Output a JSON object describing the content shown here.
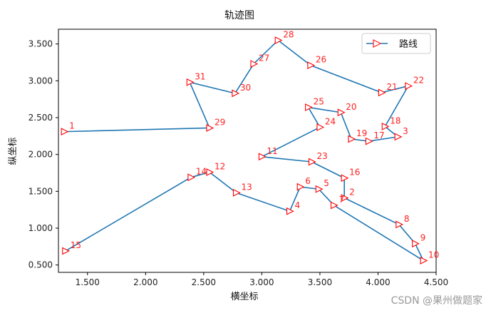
{
  "chart_data": {
    "type": "line",
    "title": "轨迹图",
    "xlabel": "横坐标",
    "ylabel": "纵坐标",
    "xlim": [
      1.25,
      4.5
    ],
    "ylim": [
      0.4,
      3.7
    ],
    "xticks": [
      1.5,
      2.0,
      2.5,
      3.0,
      3.5,
      4.0,
      4.5
    ],
    "yticks": [
      0.5,
      1.0,
      1.5,
      2.0,
      2.5,
      3.0,
      3.5
    ],
    "xtick_labels": [
      "1.500",
      "2.000",
      "2.500",
      "3.000",
      "3.500",
      "4.000",
      "4.500"
    ],
    "ytick_labels": [
      "0.500",
      "1.000",
      "1.500",
      "2.000",
      "2.500",
      "3.000",
      "3.500"
    ],
    "legend": {
      "location": "upper right",
      "label": "路线"
    },
    "series": [
      {
        "name": "路线",
        "color": "#1f77b4",
        "marker": ">",
        "marker_color": "#ff0000",
        "points": [
          {
            "label": "1",
            "x": 1.3,
            "y": 2.31
          },
          {
            "label": "29",
            "x": 2.55,
            "y": 2.36
          },
          {
            "label": "31",
            "x": 2.38,
            "y": 2.98
          },
          {
            "label": "30",
            "x": 2.77,
            "y": 2.83
          },
          {
            "label": "27",
            "x": 2.93,
            "y": 3.23
          },
          {
            "label": "28",
            "x": 3.14,
            "y": 3.55
          },
          {
            "label": "26",
            "x": 3.42,
            "y": 3.21
          },
          {
            "label": "21",
            "x": 4.03,
            "y": 2.84
          },
          {
            "label": "22",
            "x": 4.26,
            "y": 2.93
          },
          {
            "label": "18",
            "x": 4.06,
            "y": 2.38
          },
          {
            "label": "3",
            "x": 4.17,
            "y": 2.24
          },
          {
            "label": "17",
            "x": 3.92,
            "y": 2.18
          },
          {
            "label": "19",
            "x": 3.77,
            "y": 2.21
          },
          {
            "label": "20",
            "x": 3.68,
            "y": 2.57
          },
          {
            "label": "25",
            "x": 3.4,
            "y": 2.64
          },
          {
            "label": "24",
            "x": 3.5,
            "y": 2.37
          },
          {
            "label": "11",
            "x": 3.0,
            "y": 1.97
          },
          {
            "label": "23",
            "x": 3.43,
            "y": 1.9
          },
          {
            "label": "16",
            "x": 3.71,
            "y": 1.68
          },
          {
            "label": "2",
            "x": 3.71,
            "y": 1.41
          },
          {
            "label": "8",
            "x": 4.18,
            "y": 1.05
          },
          {
            "label": "9",
            "x": 4.32,
            "y": 0.79
          },
          {
            "label": "10",
            "x": 4.39,
            "y": 0.56
          },
          {
            "label": "7",
            "x": 3.62,
            "y": 1.31
          },
          {
            "label": "5",
            "x": 3.49,
            "y": 1.53
          },
          {
            "label": "6",
            "x": 3.33,
            "y": 1.56
          },
          {
            "label": "4",
            "x": 3.24,
            "y": 1.23
          },
          {
            "label": "13",
            "x": 2.78,
            "y": 1.48
          },
          {
            "label": "12",
            "x": 2.55,
            "y": 1.76
          },
          {
            "label": "14",
            "x": 2.39,
            "y": 1.69
          },
          {
            "label": "15",
            "x": 1.31,
            "y": 0.69
          }
        ]
      }
    ]
  },
  "watermark": "CSDN @果州做题家"
}
